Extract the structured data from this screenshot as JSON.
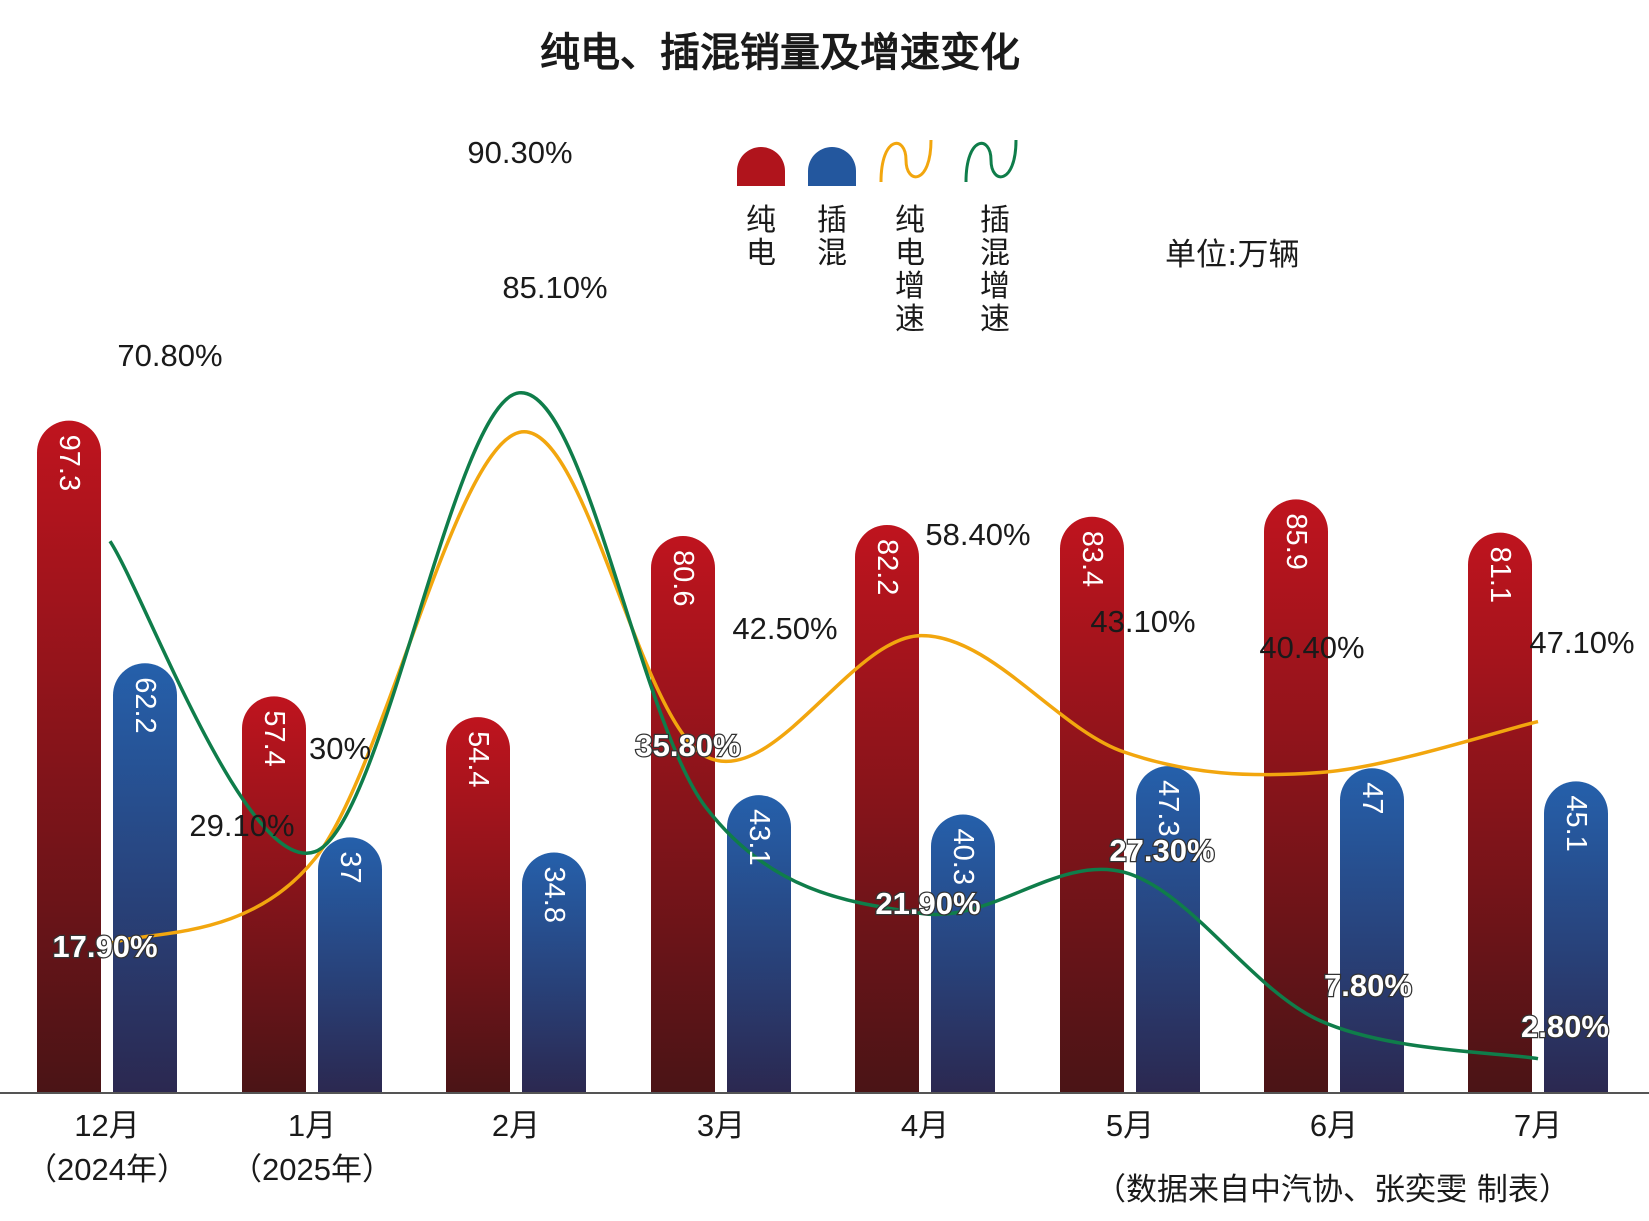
{
  "chart_data": {
    "type": "bar",
    "title": "纯电、插混销量及增速变化",
    "unit_note": "单位:万辆",
    "source_note": "（数据来自中汽协、张奕雯  制表）",
    "categories": [
      {
        "line1": "12月",
        "line2": "（2024年）"
      },
      {
        "line1": "1月",
        "line2": "（2025年）"
      },
      {
        "line1": "2月",
        "line2": ""
      },
      {
        "line1": "3月",
        "line2": ""
      },
      {
        "line1": "4月",
        "line2": ""
      },
      {
        "line1": "5月",
        "line2": ""
      },
      {
        "line1": "6月",
        "line2": ""
      },
      {
        "line1": "7月",
        "line2": ""
      }
    ],
    "series": [
      {
        "name": "纯电",
        "kind": "bar",
        "color": "#b0141c",
        "values": [
          97.3,
          57.4,
          54.4,
          80.6,
          82.2,
          83.4,
          85.9,
          81.1
        ],
        "labels": [
          "97.3",
          "57.4",
          "54.4",
          "80.6",
          "82.2",
          "83.4",
          "85.9",
          "81.1"
        ]
      },
      {
        "name": "插混",
        "kind": "bar",
        "color": "#23579e",
        "values": [
          62.2,
          37,
          34.8,
          43.1,
          40.3,
          47.3,
          47,
          45.1
        ],
        "labels": [
          "62.2",
          "37",
          "34.8",
          "43.1",
          "40.3",
          "47.3",
          "47",
          "45.1"
        ]
      },
      {
        "name": "纯电增速",
        "kind": "line",
        "color": "#f2a60e",
        "values": [
          17.9,
          29.1,
          85.1,
          42.5,
          58.4,
          43.1,
          40.4,
          47.1
        ],
        "labels": [
          "17.90%",
          "29.10%",
          "85.10%",
          "42.50%",
          "58.40%",
          "43.10%",
          "40.40%",
          "47.10%"
        ]
      },
      {
        "name": "插混增速",
        "kind": "line",
        "color": "#0f7d4a",
        "values": [
          70.8,
          30,
          90.3,
          35.8,
          21.9,
          27.3,
          7.8,
          2.8
        ],
        "labels": [
          "70.80%",
          "30%",
          "90.30%",
          "35.80%",
          "21.90%",
          "27.30%",
          "7.80%",
          "2.80%"
        ]
      }
    ],
    "legend": {
      "position": "top-center",
      "items": [
        "纯电",
        "插混",
        "纯电增速",
        "插混增速"
      ]
    },
    "grid": false
  }
}
